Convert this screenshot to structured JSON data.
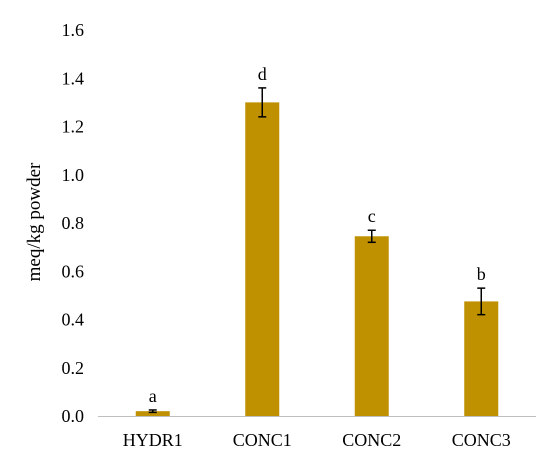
{
  "chart_data": {
    "type": "bar",
    "categories": [
      "HYDR1",
      "CONC1",
      "CONC2",
      "CONC3"
    ],
    "values": [
      0.02,
      1.3,
      0.745,
      0.475
    ],
    "error": [
      0.005,
      0.06,
      0.025,
      0.055
    ],
    "significance_labels": [
      "a",
      "d",
      "c",
      "b"
    ],
    "ylabel": "meq/kg powder",
    "xlabel": "",
    "ylim": [
      0.0,
      1.6
    ],
    "yticks": [
      "0.0",
      "0.2",
      "0.4",
      "0.6",
      "0.8",
      "1.0",
      "1.2",
      "1.4",
      "1.6"
    ],
    "ytick_values": [
      0.0,
      0.2,
      0.4,
      0.6,
      0.8,
      1.0,
      1.2,
      1.4,
      1.6
    ],
    "grid": false,
    "bar_color": "#bf9000",
    "error_bar_color": "#000000",
    "axis_color": "#bfbfbf"
  }
}
